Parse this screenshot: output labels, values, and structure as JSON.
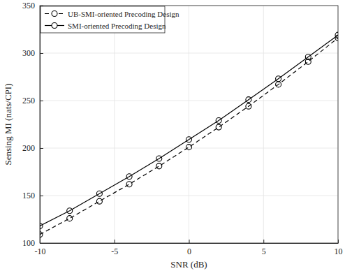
{
  "chart_data": {
    "type": "line",
    "xlabel": "SNR (dB)",
    "ylabel": "Sensing MI (nats/CPI)",
    "x": [
      -10,
      -8,
      -6,
      -4,
      -2,
      0,
      2,
      4,
      6,
      8,
      10
    ],
    "series": [
      {
        "name": "UB-SMI-oriented Precoding Design",
        "color": "#000000",
        "line_style": "dashed",
        "marker": "circle",
        "values": [
          109,
          126,
          144,
          162,
          181,
          201,
          222,
          244,
          267,
          291,
          316
        ]
      },
      {
        "name": "SMI-oriented Precoding Design",
        "color": "#000000",
        "line_style": "solid",
        "marker": "circle",
        "values": [
          118,
          134,
          152,
          170,
          189,
          209,
          229,
          251,
          273,
          296,
          319
        ]
      }
    ],
    "xlim": [
      -10,
      10
    ],
    "xticks": [
      -10,
      -5,
      0,
      5,
      10
    ],
    "ylim": [
      100,
      350
    ],
    "yticks": [
      100,
      150,
      200,
      250,
      300,
      350
    ],
    "grid": true,
    "legend": "top-left"
  }
}
